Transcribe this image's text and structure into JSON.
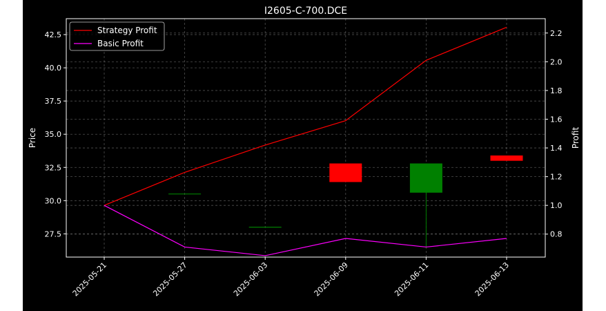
{
  "chart_data": {
    "type": "candlestick+line",
    "title": "I2605-C-700.DCE",
    "xlabel": "",
    "ylabel_left": "Price",
    "ylabel_right": "Profit",
    "x_ticks": [
      "2025-05-21",
      "2025-05-27",
      "2025-06-03",
      "2025-06-09",
      "2025-06-11",
      "2025-06-13"
    ],
    "ylim_left": [
      25.75,
      43.7
    ],
    "yticks_left": [
      "27.5",
      "30.0",
      "32.5",
      "35.0",
      "37.5",
      "40.0",
      "42.5"
    ],
    "ylim_right": [
      0.64,
      2.3
    ],
    "yticks_right": [
      "0.8",
      "1.0",
      "1.2",
      "1.4",
      "1.6",
      "1.8",
      "2.0",
      "2.2"
    ],
    "grid": true,
    "legend_position": "top-left",
    "candles": [
      {
        "date": "2025-05-27",
        "open": 30.5,
        "high": 30.5,
        "low": 30.5,
        "close": 30.5
      },
      {
        "date": "2025-06-03",
        "open": 28.0,
        "high": 28.0,
        "low": 28.0,
        "close": 28.0
      },
      {
        "date": "2025-06-09",
        "open": 32.8,
        "high": 32.8,
        "low": 31.4,
        "close": 31.4
      },
      {
        "date": "2025-06-11",
        "open": 30.6,
        "high": 32.8,
        "low": 26.4,
        "close": 32.8
      },
      {
        "date": "2025-06-13",
        "open": 33.4,
        "high": 33.4,
        "low": 33.0,
        "close": 33.0
      }
    ],
    "series": [
      {
        "name": "Strategy Profit",
        "color": "#ff0000",
        "axis": "right",
        "values": [
          1.0,
          1.23,
          1.42,
          1.59,
          2.01,
          2.24
        ]
      },
      {
        "name": "Basic Profit",
        "color": "#ff00ff",
        "axis": "right",
        "values": [
          1.0,
          0.71,
          0.65,
          0.77,
          0.71,
          0.77
        ]
      }
    ],
    "colors": {
      "up": "#008000",
      "down": "#ff0000",
      "grid": "#b0b0b0"
    }
  }
}
